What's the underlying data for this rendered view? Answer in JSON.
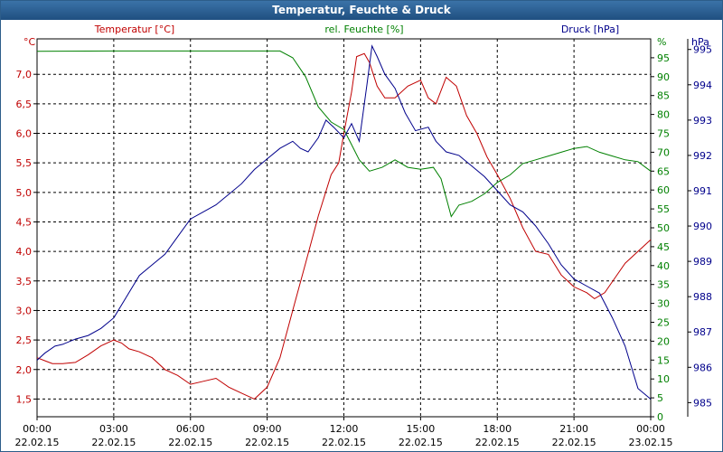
{
  "window": {
    "title": "Temperatur, Feuchte & Druck"
  },
  "chart_data": {
    "type": "line",
    "title": "Temperatur, Feuchte & Druck",
    "grid": true,
    "colors": {
      "temperature": "#c00000",
      "humidity": "#008000",
      "pressure": "#00008b"
    },
    "x_ticks": [
      {
        "time": "00:00",
        "date": "22.02.15"
      },
      {
        "time": "03:00",
        "date": "22.02.15"
      },
      {
        "time": "06:00",
        "date": "22.02.15"
      },
      {
        "time": "09:00",
        "date": "22.02.15"
      },
      {
        "time": "12:00",
        "date": "22.02.15"
      },
      {
        "time": "15:00",
        "date": "22.02.15"
      },
      {
        "time": "18:00",
        "date": "22.02.15"
      },
      {
        "time": "21:00",
        "date": "22.02.15"
      },
      {
        "time": "00:00",
        "date": "23.02.15"
      }
    ],
    "x_hours_range": [
      0,
      24
    ],
    "axes": {
      "temperature": {
        "label": "Temperatur [°C]",
        "unit": "°C",
        "range": [
          1.2,
          7.6
        ],
        "ticks": [
          "1,5",
          "2,0",
          "2,5",
          "3,0",
          "3,5",
          "4,0",
          "4,5",
          "5,0",
          "5,5",
          "6,0",
          "6,5",
          "7,0"
        ]
      },
      "humidity": {
        "label": "rel. Feuchte [%]",
        "unit": "%",
        "range": [
          0,
          100
        ],
        "ticks": [
          "0",
          "5",
          "10",
          "15",
          "20",
          "25",
          "30",
          "35",
          "40",
          "45",
          "50",
          "55",
          "60",
          "65",
          "70",
          "75",
          "80",
          "85",
          "90",
          "95"
        ]
      },
      "pressure": {
        "label": "Druck [hPa]",
        "unit": "hPa",
        "range": [
          984.6,
          995.3
        ],
        "ticks": [
          "985",
          "986",
          "987",
          "988",
          "989",
          "990",
          "991",
          "992",
          "993",
          "994",
          "995"
        ]
      }
    },
    "series": [
      {
        "name": "Temperatur [°C]",
        "axis": "temperature",
        "color": "#c00000",
        "points": [
          [
            0,
            2.2
          ],
          [
            0.3,
            2.15
          ],
          [
            0.6,
            2.1
          ],
          [
            1,
            2.1
          ],
          [
            1.5,
            2.12
          ],
          [
            2,
            2.25
          ],
          [
            2.5,
            2.4
          ],
          [
            3,
            2.5
          ],
          [
            3.3,
            2.45
          ],
          [
            3.6,
            2.35
          ],
          [
            4,
            2.3
          ],
          [
            4.5,
            2.2
          ],
          [
            5,
            2.0
          ],
          [
            5.5,
            1.9
          ],
          [
            6,
            1.75
          ],
          [
            6.5,
            1.8
          ],
          [
            7,
            1.85
          ],
          [
            7.5,
            1.7
          ],
          [
            8,
            1.6
          ],
          [
            8.5,
            1.5
          ],
          [
            9,
            1.7
          ],
          [
            9.5,
            2.2
          ],
          [
            10,
            3.0
          ],
          [
            10.5,
            3.8
          ],
          [
            11,
            4.6
          ],
          [
            11.5,
            5.3
          ],
          [
            11.8,
            5.5
          ],
          [
            12,
            6.0
          ],
          [
            12.3,
            6.7
          ],
          [
            12.5,
            7.3
          ],
          [
            12.8,
            7.35
          ],
          [
            13,
            7.2
          ],
          [
            13.3,
            6.8
          ],
          [
            13.6,
            6.6
          ],
          [
            14,
            6.6
          ],
          [
            14.5,
            6.8
          ],
          [
            15,
            6.9
          ],
          [
            15.3,
            6.6
          ],
          [
            15.6,
            6.5
          ],
          [
            16,
            6.95
          ],
          [
            16.4,
            6.8
          ],
          [
            16.8,
            6.3
          ],
          [
            17.2,
            6.0
          ],
          [
            17.6,
            5.6
          ],
          [
            18,
            5.3
          ],
          [
            18.5,
            4.9
          ],
          [
            19,
            4.4
          ],
          [
            19.5,
            4.0
          ],
          [
            20,
            3.95
          ],
          [
            20.5,
            3.6
          ],
          [
            21,
            3.4
          ],
          [
            21.5,
            3.3
          ],
          [
            21.8,
            3.2
          ],
          [
            22.2,
            3.3
          ],
          [
            22.6,
            3.55
          ],
          [
            23,
            3.8
          ],
          [
            23.5,
            4.0
          ],
          [
            24,
            4.2
          ]
        ]
      },
      {
        "name": "rel. Feuchte [%]",
        "axis": "humidity",
        "color": "#008000",
        "points": [
          [
            0,
            96.7
          ],
          [
            3,
            96.8
          ],
          [
            6,
            96.8
          ],
          [
            9,
            96.8
          ],
          [
            9.5,
            96.8
          ],
          [
            10,
            95
          ],
          [
            10.5,
            90
          ],
          [
            11,
            82
          ],
          [
            11.5,
            78
          ],
          [
            12,
            76
          ],
          [
            12.3,
            72
          ],
          [
            12.6,
            68
          ],
          [
            13,
            65
          ],
          [
            13.5,
            66
          ],
          [
            14,
            68
          ],
          [
            14.5,
            66
          ],
          [
            15,
            65.5
          ],
          [
            15.5,
            66
          ],
          [
            15.8,
            63
          ],
          [
            16,
            58
          ],
          [
            16.2,
            53
          ],
          [
            16.5,
            56
          ],
          [
            17,
            57
          ],
          [
            17.5,
            59
          ],
          [
            18,
            62
          ],
          [
            18.5,
            64
          ],
          [
            19,
            67
          ],
          [
            19.5,
            68
          ],
          [
            20,
            69
          ],
          [
            20.5,
            70
          ],
          [
            21,
            71
          ],
          [
            21.5,
            71.5
          ],
          [
            22,
            70
          ],
          [
            22.5,
            69
          ],
          [
            23,
            68
          ],
          [
            23.5,
            67.5
          ],
          [
            24,
            65
          ]
        ]
      },
      {
        "name": "Druck [hPa]",
        "axis": "pressure",
        "color": "#00008b",
        "points": [
          [
            0,
            986.2
          ],
          [
            0.3,
            986.4
          ],
          [
            0.7,
            986.6
          ],
          [
            1,
            986.65
          ],
          [
            1.5,
            986.8
          ],
          [
            2,
            986.9
          ],
          [
            2.5,
            987.1
          ],
          [
            3,
            987.4
          ],
          [
            3.5,
            988.0
          ],
          [
            4,
            988.6
          ],
          [
            4.5,
            988.9
          ],
          [
            5,
            989.2
          ],
          [
            5.5,
            989.7
          ],
          [
            6,
            990.2
          ],
          [
            6.5,
            990.4
          ],
          [
            7,
            990.6
          ],
          [
            7.5,
            990.9
          ],
          [
            8,
            991.2
          ],
          [
            8.5,
            991.6
          ],
          [
            9,
            991.9
          ],
          [
            9.5,
            992.2
          ],
          [
            10,
            992.4
          ],
          [
            10.3,
            992.2
          ],
          [
            10.6,
            992.1
          ],
          [
            11,
            992.5
          ],
          [
            11.3,
            993.0
          ],
          [
            11.6,
            992.8
          ],
          [
            12,
            992.5
          ],
          [
            12.3,
            992.9
          ],
          [
            12.6,
            992.4
          ],
          [
            12.9,
            994.0
          ],
          [
            13.1,
            995.1
          ],
          [
            13.3,
            994.8
          ],
          [
            13.6,
            994.3
          ],
          [
            14,
            993.9
          ],
          [
            14.4,
            993.2
          ],
          [
            14.8,
            992.7
          ],
          [
            15.3,
            992.8
          ],
          [
            15.6,
            992.4
          ],
          [
            16,
            992.1
          ],
          [
            16.5,
            992.0
          ],
          [
            17,
            991.7
          ],
          [
            17.5,
            991.4
          ],
          [
            18,
            991.0
          ],
          [
            18.5,
            990.6
          ],
          [
            19,
            990.4
          ],
          [
            19.5,
            990.0
          ],
          [
            20,
            989.5
          ],
          [
            20.5,
            988.9
          ],
          [
            21,
            988.5
          ],
          [
            21.5,
            988.3
          ],
          [
            22,
            988.1
          ],
          [
            22.5,
            987.4
          ],
          [
            23,
            986.6
          ],
          [
            23.5,
            985.4
          ],
          [
            24,
            985.1
          ]
        ]
      }
    ]
  }
}
